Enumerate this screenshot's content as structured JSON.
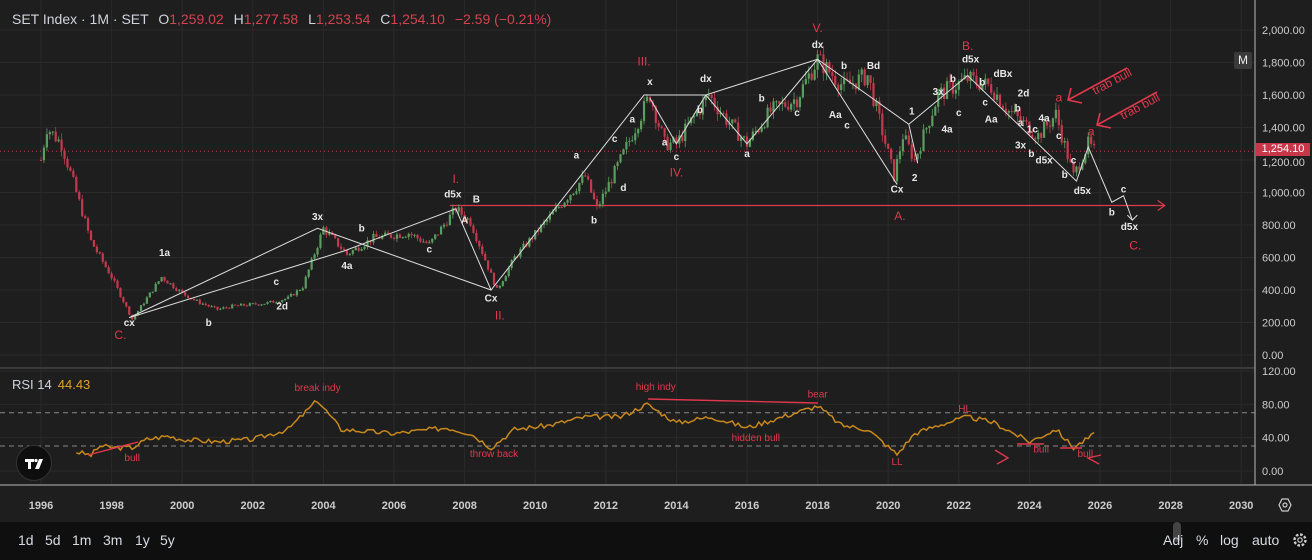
{
  "header": {
    "symbol": "SET Index · 1M · SET",
    "open_label": "O",
    "open": "1,259.02",
    "high_label": "H",
    "high": "1,277.58",
    "low_label": "L",
    "low": "1,253.54",
    "close_label": "C",
    "close": "1,254.10",
    "change": "−2.59 (−0.21%)"
  },
  "interval_button": "M",
  "last_price_tag": "1,254.10",
  "rsi": {
    "label": "RSI 14",
    "value": "44.43"
  },
  "bottom_bar": {
    "ranges": [
      "1d",
      "5d",
      "1m",
      "3m",
      "1y",
      "5y"
    ],
    "adj": "Adj",
    "percent": "%",
    "log": "log",
    "auto": "auto"
  },
  "icons": {
    "logo": "tradingview-logo",
    "axis_settings": "hexagon-settings-icon",
    "settings": "gear-icon"
  },
  "colors": {
    "up": "#5a9e5f",
    "down": "#c23a4e",
    "rsi_line": "#c8881c",
    "annotation_red": "#e0384c",
    "annotation_white": "#e8e8e8",
    "background": "#1e1e1e"
  },
  "chart_data": {
    "type": "candlestick",
    "title": "SET Index · 1M · SET",
    "interval": "monthly",
    "x_ticks": [
      "1996",
      "1998",
      "2000",
      "2002",
      "2004",
      "2006",
      "2008",
      "2010",
      "2012",
      "2014",
      "2016",
      "2018",
      "2020",
      "2022",
      "2024",
      "2026",
      "2028",
      "2030"
    ],
    "y_ticks": [
      "2,000.00",
      "1,800.00",
      "1,600.00",
      "1,400.00",
      "1,200.00",
      "1,000.00",
      "800.00",
      "600.00",
      "400.00",
      "200.00",
      "0.00"
    ],
    "ylim": [
      0,
      2000
    ],
    "grid": true,
    "last_price": 1254.1,
    "price_path": [
      [
        "1996-01",
        1200
      ],
      [
        "1996-03",
        1400
      ],
      [
        "1996-08",
        1300
      ],
      [
        "1997-01",
        1000
      ],
      [
        "1997-06",
        700
      ],
      [
        "1998-01",
        480
      ],
      [
        "1998-08",
        220
      ],
      [
        "1999-06",
        480
      ],
      [
        "2000-01",
        380
      ],
      [
        "2000-06",
        330
      ],
      [
        "2001-01",
        280
      ],
      [
        "2001-06",
        300
      ],
      [
        "2002-06",
        320
      ],
      [
        "2003-01",
        350
      ],
      [
        "2003-06",
        420
      ],
      [
        "2004-01",
        780
      ],
      [
        "2004-09",
        620
      ],
      [
        "2005-06",
        720
      ],
      [
        "2006-06",
        750
      ],
      [
        "2007-01",
        680
      ],
      [
        "2007-10",
        900
      ],
      [
        "2008-03",
        820
      ],
      [
        "2008-12",
        400
      ],
      [
        "2009-06",
        600
      ],
      [
        "2010-06",
        850
      ],
      [
        "2011-06",
        1100
      ],
      [
        "2011-10",
        900
      ],
      [
        "2012-06",
        1200
      ],
      [
        "2013-04",
        1600
      ],
      [
        "2013-09",
        1300
      ],
      [
        "2014-01",
        1300
      ],
      [
        "2014-12",
        1600
      ],
      [
        "2015-06",
        1450
      ],
      [
        "2016-01",
        1300
      ],
      [
        "2016-09",
        1500
      ],
      [
        "2017-06",
        1580
      ],
      [
        "2018-01",
        1820
      ],
      [
        "2018-10",
        1650
      ],
      [
        "2019-06",
        1720
      ],
      [
        "2020-03",
        1100
      ],
      [
        "2020-06",
        1350
      ],
      [
        "2020-10",
        1200
      ],
      [
        "2021-06",
        1600
      ],
      [
        "2022-04",
        1700
      ],
      [
        "2022-12",
        1650
      ],
      [
        "2023-06",
        1500
      ],
      [
        "2024-04",
        1350
      ],
      [
        "2024-10",
        1480
      ],
      [
        "2025-04",
        1100
      ],
      [
        "2025-09",
        1300
      ],
      [
        "2025-11",
        1254
      ]
    ],
    "rsi_panel": {
      "label": "RSI 14",
      "y_ticks": [
        "120.00",
        "80.00",
        "40.00",
        "0.00"
      ],
      "ylim": [
        0,
        120
      ],
      "bands": [
        30,
        70
      ],
      "path": [
        [
          "1997-01",
          23
        ],
        [
          "1997-06",
          19
        ],
        [
          "1997-09",
          30
        ],
        [
          "1998-01",
          28
        ],
        [
          "1998-08",
          28
        ],
        [
          "1999-01",
          38
        ],
        [
          "1999-08",
          42
        ],
        [
          "2000-01",
          38
        ],
        [
          "2001-01",
          35
        ],
        [
          "2002-01",
          38
        ],
        [
          "2003-01",
          50
        ],
        [
          "2003-11",
          85
        ],
        [
          "2004-07",
          50
        ],
        [
          "2006-01",
          45
        ],
        [
          "2007-07",
          52
        ],
        [
          "2008-03",
          45
        ],
        [
          "2008-10",
          28
        ],
        [
          "2009-06",
          50
        ],
        [
          "2010-06",
          55
        ],
        [
          "2011-06",
          65
        ],
        [
          "2012-06",
          65
        ],
        [
          "2013-03",
          80
        ],
        [
          "2014-01",
          58
        ],
        [
          "2015-01",
          65
        ],
        [
          "2016-01",
          52
        ],
        [
          "2017-01",
          65
        ],
        [
          "2018-01",
          78
        ],
        [
          "2018-09",
          55
        ],
        [
          "2019-06",
          50
        ],
        [
          "2020-04",
          20
        ],
        [
          "2020-10",
          45
        ],
        [
          "2021-06",
          55
        ],
        [
          "2022-04",
          65
        ],
        [
          "2023-01",
          58
        ],
        [
          "2024-01",
          35
        ],
        [
          "2024-10",
          50
        ],
        [
          "2025-04",
          28
        ],
        [
          "2025-11",
          44
        ]
      ],
      "annotations": [
        {
          "text": "bull",
          "at": [
            "1998-08",
            12
          ]
        },
        {
          "text": "break indy",
          "at": [
            "2003-11",
            96
          ]
        },
        {
          "text": "throw back",
          "at": [
            "2008-11",
            17
          ]
        },
        {
          "text": "high indy",
          "at": [
            "2013-06",
            97
          ]
        },
        {
          "text": "bear",
          "at": [
            "2018-01",
            88
          ]
        },
        {
          "text": "hidden bull",
          "at": [
            "2016-04",
            36
          ]
        },
        {
          "text": "LL",
          "at": [
            "2020-04",
            7
          ]
        },
        {
          "text": "HL",
          "at": [
            "2022-03",
            71
          ]
        },
        {
          "text": "bull",
          "at": [
            "2024-05",
            22
          ]
        },
        {
          "text": "bull",
          "at": [
            "2025-08",
            17
          ]
        }
      ]
    },
    "wave_labels_red": [
      {
        "text": "C.",
        "at": [
          "1998-04",
          135
        ]
      },
      {
        "text": "I.",
        "at": [
          "2007-10",
          1060
        ]
      },
      {
        "text": "II.",
        "at": [
          "2009-01",
          220
        ]
      },
      {
        "text": "III.",
        "at": [
          "2013-02",
          1720
        ]
      },
      {
        "text": "IV.",
        "at": [
          "2014-01",
          1100
        ]
      },
      {
        "text": "V.",
        "at": [
          "2018-01",
          1940
        ]
      },
      {
        "text": "A.",
        "at": [
          "2020-05",
          830
        ]
      },
      {
        "text": "B.",
        "at": [
          "2022-04",
          1790
        ]
      },
      {
        "text": "C.",
        "at": [
          "2027-01",
          700
        ]
      },
      {
        "text": "a",
        "at": [
          "2024-11",
          1560
        ]
      },
      {
        "text": "a",
        "at": [
          "2025-10",
          1350
        ]
      }
    ],
    "wave_labels_white": [
      {
        "text": "cx",
        "at": [
          "1998-07",
          160
        ]
      },
      {
        "text": "1a",
        "at": [
          "1999-07",
          610
        ]
      },
      {
        "text": "b",
        "at": [
          "2000-10",
          180
        ]
      },
      {
        "text": "c",
        "at": [
          "2002-09",
          430
        ]
      },
      {
        "text": "2d",
        "at": [
          "2002-11",
          280
        ]
      },
      {
        "text": "3x",
        "at": [
          "2003-11",
          830
        ]
      },
      {
        "text": "b",
        "at": [
          "2005-02",
          760
        ]
      },
      {
        "text": "4a",
        "at": [
          "2004-09",
          530
        ]
      },
      {
        "text": "c",
        "at": [
          "2007-01",
          630
        ]
      },
      {
        "text": "d5x",
        "at": [
          "2007-09",
          970
        ]
      },
      {
        "text": "B",
        "at": [
          "2008-05",
          940
        ]
      },
      {
        "text": "A",
        "at": [
          "2008-01",
          810
        ]
      },
      {
        "text": "Cx",
        "at": [
          "2008-10",
          330
        ]
      },
      {
        "text": "a",
        "at": [
          "2011-03",
          1210
        ]
      },
      {
        "text": "b",
        "at": [
          "2011-09",
          810
        ]
      },
      {
        "text": "c",
        "at": [
          "2012-04",
          1310
        ]
      },
      {
        "text": "d",
        "at": [
          "2012-07",
          1010
        ]
      },
      {
        "text": "a",
        "at": [
          "2012-10",
          1430
        ]
      },
      {
        "text": "x",
        "at": [
          "2013-04",
          1680
        ]
      },
      {
        "text": "b",
        "at": [
          "2014-09",
          1490
        ]
      },
      {
        "text": "a",
        "at": [
          "2013-09",
          1290
        ]
      },
      {
        "text": "c",
        "at": [
          "2014-01",
          1200
        ]
      },
      {
        "text": "dx",
        "at": [
          "2014-11",
          1680
        ]
      },
      {
        "text": "b",
        "at": [
          "2016-06",
          1560
        ]
      },
      {
        "text": "a",
        "at": [
          "2016-01",
          1220
        ]
      },
      {
        "text": "c",
        "at": [
          "2017-06",
          1470
        ]
      },
      {
        "text": "dx",
        "at": [
          "2018-01",
          1890
        ]
      },
      {
        "text": "Aa",
        "at": [
          "2018-07",
          1460
        ]
      },
      {
        "text": "b",
        "at": [
          "2018-10",
          1760
        ]
      },
      {
        "text": "c",
        "at": [
          "2018-11",
          1420
        ]
      },
      {
        "text": "Bd",
        "at": [
          "2019-08",
          1760
        ]
      },
      {
        "text": "1",
        "at": [
          "2020-09",
          1480
        ]
      },
      {
        "text": "2",
        "at": [
          "2020-10",
          1070
        ]
      },
      {
        "text": "Cx",
        "at": [
          "2020-04",
          1000
        ]
      },
      {
        "text": "3x",
        "at": [
          "2021-06",
          1600
        ]
      },
      {
        "text": "4a",
        "at": [
          "2021-09",
          1370
        ]
      },
      {
        "text": "b",
        "at": [
          "2021-11",
          1680
        ]
      },
      {
        "text": "c",
        "at": [
          "2022-01",
          1470
        ]
      },
      {
        "text": "d5x",
        "at": [
          "2022-05",
          1800
        ]
      },
      {
        "text": "b",
        "at": [
          "2022-09",
          1660
        ]
      },
      {
        "text": "Aa",
        "at": [
          "2022-12",
          1430
        ]
      },
      {
        "text": "c",
        "at": [
          "2022-11",
          1480
        ]
      },
      {
        "text": "dBx",
        "at": [
          "2023-04",
          1710
        ]
      },
      {
        "text": "b",
        "at": [
          "2023-09",
          1500
        ]
      },
      {
        "text": "2d",
        "at": [
          "2023-11",
          1590
        ]
      },
      {
        "text": "a",
        "at": [
          "2023-10",
          1410
        ]
      },
      {
        "text": "1c",
        "at": [
          "2024-02",
          1370
        ]
      },
      {
        "text": "4a",
        "at": [
          "2024-06",
          1400
        ]
      },
      {
        "text": "c",
        "at": [
          "2024-11",
          1330
        ]
      },
      {
        "text": "3x",
        "at": [
          "2023-10",
          1270
        ]
      },
      {
        "text": "b",
        "at": [
          "2024-01",
          1220
        ]
      },
      {
        "text": "d5x",
        "at": [
          "2024-06",
          1180
        ]
      },
      {
        "text": "c",
        "at": [
          "2025-04",
          1180
        ]
      },
      {
        "text": "b",
        "at": [
          "2025-01",
          1090
        ]
      },
      {
        "text": "d5x",
        "at": [
          "2025-07",
          990
        ]
      },
      {
        "text": "c",
        "at": [
          "2026-09",
          1000
        ]
      },
      {
        "text": "b",
        "at": [
          "2026-05",
          860
        ]
      },
      {
        "text": "d5x",
        "at": [
          "2026-11",
          770
        ]
      }
    ],
    "trendlines_white": [
      [
        [
          "1998-07",
          230
        ],
        [
          "2003-11",
          780
        ],
        [
          "2008-10",
          400
        ]
      ],
      [
        [
          "1998-07",
          230
        ],
        [
          "2004-08",
          640
        ],
        [
          "2007-10",
          900
        ],
        [
          "2008-10",
          400
        ],
        [
          "2013-02",
          1600
        ],
        [
          "2014-11",
          1600
        ],
        [
          "2018-01",
          1820
        ],
        [
          "2020-04",
          1050
        ]
      ],
      [
        [
          "2013-04",
          1580
        ],
        [
          "2014-01",
          1300
        ],
        [
          "2014-11",
          1600
        ],
        [
          "2016-01",
          1300
        ],
        [
          "2018-01",
          1820
        ]
      ],
      [
        [
          "2018-01",
          1820
        ],
        [
          "2020-08",
          1420
        ],
        [
          "2022-04",
          1720
        ],
        [
          "2025-05",
          1070
        ],
        [
          "2025-09",
          1280
        ],
        [
          "2026-05",
          940
        ],
        [
          "2026-09",
          980
        ],
        [
          "2026-12",
          830
        ]
      ],
      [
        [
          "2020-08",
          1420
        ],
        [
          "2020-11",
          1180
        ]
      ]
    ],
    "horizontal_level": {
      "price": 920,
      "from": "2007-08",
      "to": "2027-11"
    },
    "arrow_labels": [
      "trab bull",
      "trab bull"
    ]
  }
}
